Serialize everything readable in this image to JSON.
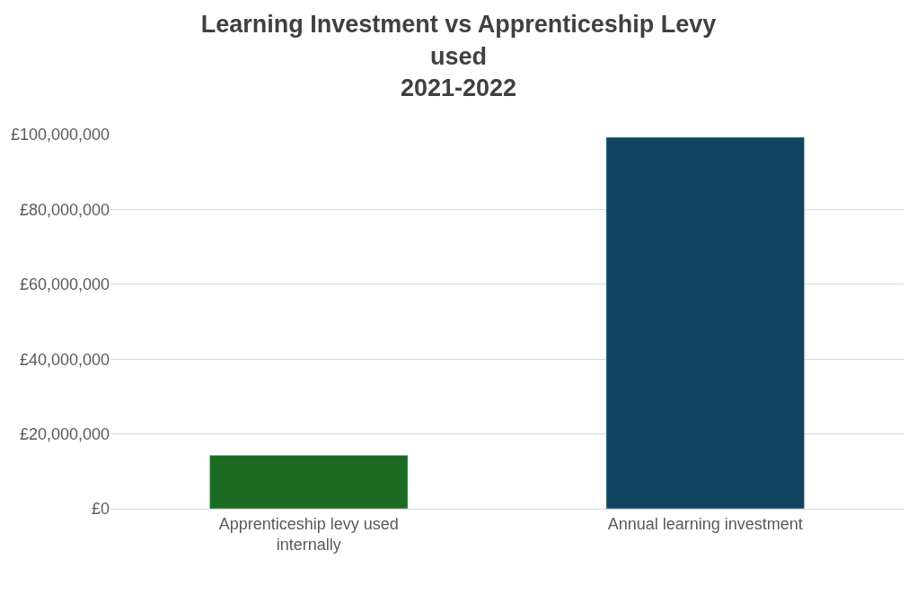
{
  "chart_data": {
    "type": "bar",
    "title": "Learning Investment vs Apprenticeship Levy\nused\n2021-2022",
    "categories": [
      "Apprenticeship levy used internally",
      "Annual learning investment"
    ],
    "values": [
      14300000,
      99300000
    ],
    "colors": [
      "#1b6b25",
      "#11445e"
    ],
    "ylim": [
      0,
      100000000
    ],
    "yticks": [
      {
        "value": 0,
        "label": "£0"
      },
      {
        "value": 20000000,
        "label": "£20,000,000"
      },
      {
        "value": 40000000,
        "label": "£40,000,000"
      },
      {
        "value": 60000000,
        "label": "£60,000,000"
      },
      {
        "value": 80000000,
        "label": "£80,000,000"
      },
      {
        "value": 100000000,
        "label": "£100,000,000"
      }
    ],
    "grid": "y"
  }
}
